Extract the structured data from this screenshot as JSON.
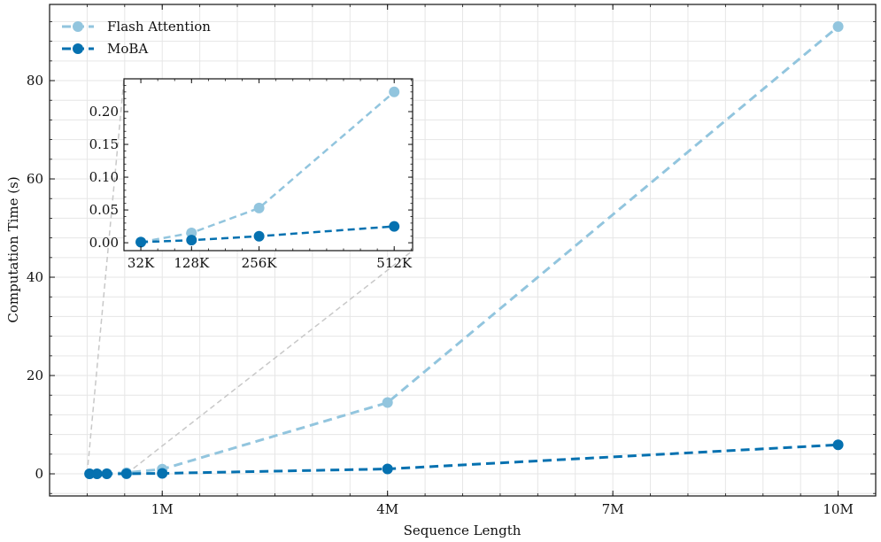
{
  "chart_data": {
    "type": "line",
    "xlabel": "Sequence Length",
    "ylabel": "Computation Time (s)",
    "x_tick_labels": [
      "1M",
      "4M",
      "7M",
      "10M"
    ],
    "x_ticks": [
      1000000,
      4000000,
      7000000,
      10000000
    ],
    "y_ticks": [
      0,
      20,
      40,
      60,
      80
    ],
    "xlim": [
      -500000,
      10500000
    ],
    "ylim": [
      -4.5,
      95.5
    ],
    "grid": true,
    "legend_position": "top-left",
    "series": [
      {
        "name": "Flash Attention",
        "color": "#92c5de",
        "x": [
          32768,
          131072,
          262144,
          524288,
          1000000,
          4000000,
          10000000
        ],
        "values": [
          0.001,
          0.015,
          0.053,
          0.23,
          0.95,
          14.5,
          91.0
        ]
      },
      {
        "name": "MoBA",
        "color": "#0571b0",
        "x": [
          32768,
          131072,
          262144,
          524288,
          1000000,
          4000000,
          10000000
        ],
        "values": [
          0.001,
          0.004,
          0.01,
          0.025,
          0.09,
          1.0,
          5.9
        ]
      }
    ],
    "inset": {
      "x_tick_labels": [
        "32K",
        "128K",
        "256K",
        "512K"
      ],
      "x_ticks": [
        32768,
        131072,
        262144,
        524288
      ],
      "y_ticks": [
        0.0,
        0.05,
        0.1,
        0.15,
        0.2
      ],
      "y_tick_labels": [
        "0.00",
        "0.05",
        "0.10",
        "0.15",
        "0.20"
      ],
      "xlim": [
        0,
        560000
      ],
      "ylim": [
        -0.012,
        0.25
      ],
      "series": [
        {
          "name": "Flash Attention",
          "color": "#92c5de",
          "x": [
            32768,
            131072,
            262144,
            524288
          ],
          "values": [
            0.001,
            0.015,
            0.053,
            0.23
          ]
        },
        {
          "name": "MoBA",
          "color": "#0571b0",
          "x": [
            32768,
            131072,
            262144,
            524288
          ],
          "values": [
            0.001,
            0.004,
            0.01,
            0.025
          ]
        }
      ]
    }
  }
}
